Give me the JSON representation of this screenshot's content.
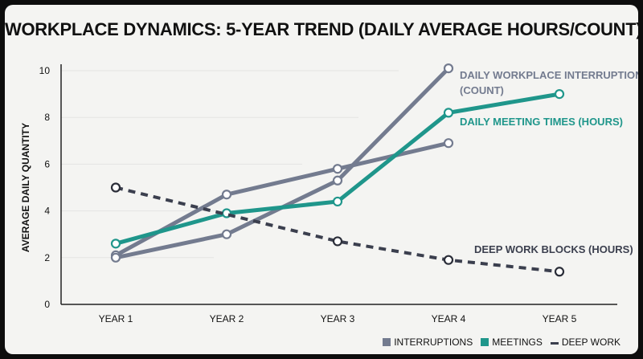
{
  "title": "WORKPLACE DYNAMICS: 5-YEAR TREND (DAILY AVERAGE HOURS/COUNT)",
  "colors": {
    "interruptions": "#737b8f",
    "meetings": "#1f968b",
    "deep_work": "#3b3f4e",
    "axis": "#222222",
    "grid": "#e3e3e3"
  },
  "legend": {
    "interruptions": "INTERRUPTIONS",
    "meetings": "MEETINGS",
    "deep_work": "DEEP WORK"
  },
  "chart_data": {
    "type": "line",
    "categories": [
      "YEAR 1",
      "YEAR 2",
      "YEAR 3",
      "YEAR 4",
      "YEAR 5"
    ],
    "ylabel": "AVERAGE DAILY QUANTITY",
    "xlabel": "",
    "ylim": [
      0,
      10
    ],
    "yticks": [
      0,
      2,
      4,
      6,
      8,
      10
    ],
    "grid": true,
    "legend_position": "bottom-right",
    "series": [
      {
        "key": "interruptions",
        "name": "INTERRUPTIONS",
        "label": "DAILY WORKPLACE INTERRUPTIONS (COUNT)",
        "style": "solid",
        "points": [
          {
            "x": "YEAR 1",
            "y": 2.1
          },
          {
            "x": "YEAR 2",
            "y": 4.7
          },
          {
            "x": "YEAR 3",
            "y": 5.8
          },
          {
            "x": "YEAR 4",
            "y": 6.9
          }
        ]
      },
      {
        "key": "interruptions_b",
        "name": "INTERRUPTIONS",
        "label": "",
        "style": "solid",
        "points": [
          {
            "x": "YEAR 1",
            "y": 2.0
          },
          {
            "x": "YEAR 2",
            "y": 3.0
          },
          {
            "x": "YEAR 3",
            "y": 5.3
          },
          {
            "x": "YEAR 4",
            "y": 10.1
          }
        ]
      },
      {
        "key": "meetings",
        "name": "MEETINGS",
        "label": "DAILY MEETING TIMES (HOURS)",
        "style": "solid",
        "points": [
          {
            "x": "YEAR 1",
            "y": 2.6
          },
          {
            "x": "YEAR 2",
            "y": 3.9
          },
          {
            "x": "YEAR 3",
            "y": 4.4
          },
          {
            "x": "YEAR 4",
            "y": 8.2
          },
          {
            "x": "YEAR 5",
            "y": 9.0
          }
        ]
      },
      {
        "key": "deep_work",
        "name": "DEEP WORK",
        "label": "DEEP WORK BLOCKS (HOURS)",
        "style": "dashed",
        "points": [
          {
            "x": "YEAR 1",
            "y": 5.0
          },
          {
            "x": "YEAR 3",
            "y": 2.7
          },
          {
            "x": "YEAR 4",
            "y": 1.9
          },
          {
            "x": "YEAR 5",
            "y": 1.4
          }
        ]
      }
    ]
  }
}
